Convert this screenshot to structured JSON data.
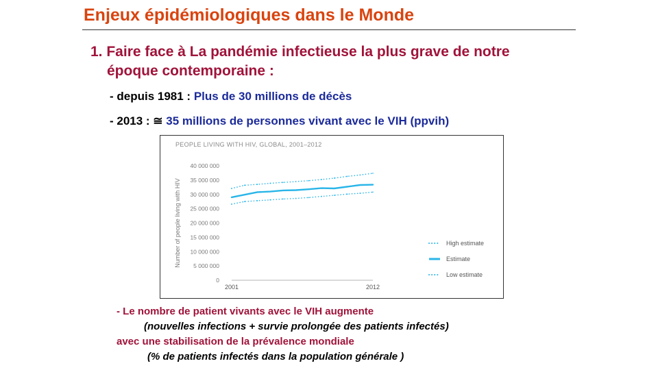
{
  "slide": {
    "title": "Enjeux épidémiologiques dans le Monde",
    "point": {
      "line1": "1. Faire face à La pandémie infectieuse la plus grave de notre",
      "line2": "époque contemporaine  :"
    },
    "facts": [
      {
        "label": "- depuis 1981 :  ",
        "value": "Plus de 30 millions  de décès"
      },
      {
        "label": "- 2013 : ≅ ",
        "value": "35 millions de personnes vivant avec le VIH (ppvih)"
      }
    ],
    "notes": [
      "- Le nombre de patient vivants avec le VIH augmente",
      "(nouvelles infections + survie prolongée des patients infectés)",
      "avec une stabilisation de la prévalence mondiale",
      "(% de  patients infectés dans la population générale )"
    ]
  },
  "chart_data": {
    "type": "line",
    "title": "PEOPLE LIVING WITH HIV, GLOBAL, 2001–2012",
    "ylabel": "Number of people living with HIV",
    "xlabel": "",
    "x": [
      2001,
      2002,
      2003,
      2004,
      2005,
      2006,
      2007,
      2008,
      2009,
      2010,
      2011,
      2012
    ],
    "x_tick_labels": [
      "2001",
      "2012"
    ],
    "y_tick_labels": [
      "0",
      "5 000 000",
      "10 000 000",
      "15 000 000",
      "20 000 000",
      "25 000 000",
      "30 000 000",
      "35 000 000",
      "40 000 000"
    ],
    "ylim": [
      0,
      40000000
    ],
    "series": [
      {
        "name": "High estimate",
        "style": "dotted",
        "color": "#29b5e8",
        "values": [
          32100000,
          33200000,
          33500000,
          33900000,
          34200000,
          34500000,
          34800000,
          35200000,
          35700000,
          36300000,
          36800000,
          37400000
        ]
      },
      {
        "name": "Estimate",
        "style": "solid",
        "color": "#29b5e8",
        "values": [
          29000000,
          29900000,
          30800000,
          31000000,
          31400000,
          31500000,
          31800000,
          32200000,
          32100000,
          32700000,
          33300000,
          33400000
        ]
      },
      {
        "name": "Low estimate",
        "style": "dotted",
        "color": "#29b5e8",
        "values": [
          26600000,
          27500000,
          27800000,
          28100000,
          28400000,
          28600000,
          28900000,
          29300000,
          29700000,
          30100000,
          30400000,
          30800000
        ]
      }
    ],
    "legend_position": "bottom-right",
    "grid": false
  }
}
